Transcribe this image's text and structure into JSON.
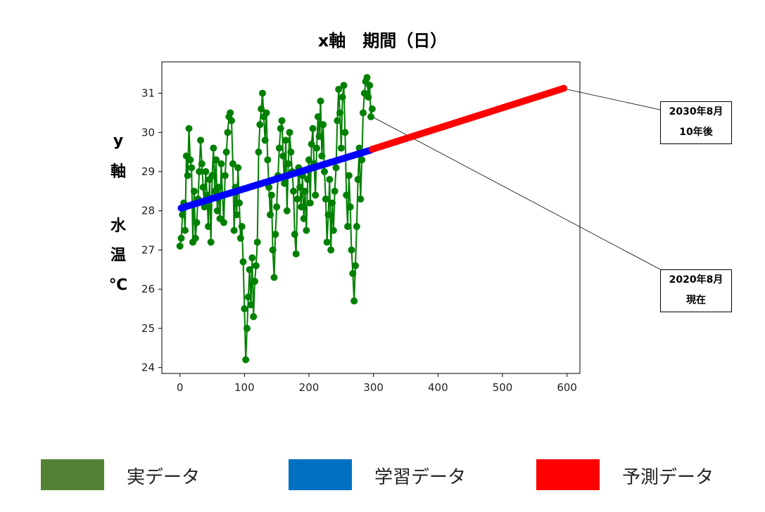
{
  "chart_data": {
    "type": "line",
    "title": "x軸　期間（日）",
    "ylabel": {
      "line1": "y",
      "line2": "軸",
      "line3": "水",
      "line4": "温",
      "line5": "℃"
    },
    "xlim": [
      -28,
      620
    ],
    "ylim": [
      23.85,
      31.8
    ],
    "x_ticks": [
      0,
      100,
      200,
      300,
      400,
      500,
      600
    ],
    "y_ticks": [
      24,
      25,
      26,
      27,
      28,
      29,
      30,
      31
    ],
    "grid": false,
    "series": [
      {
        "name": "実データ",
        "color": "#008000",
        "style": "line-marker",
        "points": [
          [
            0,
            27.1
          ],
          [
            2,
            27.3
          ],
          [
            4,
            27.9
          ],
          [
            6,
            28.2
          ],
          [
            8,
            27.5
          ],
          [
            10,
            29.4
          ],
          [
            12,
            28.9
          ],
          [
            14,
            30.1
          ],
          [
            16,
            29.3
          ],
          [
            18,
            29.1
          ],
          [
            20,
            27.2
          ],
          [
            22,
            28.5
          ],
          [
            24,
            27.3
          ],
          [
            26,
            27.7
          ],
          [
            28,
            28.3
          ],
          [
            30,
            29.0
          ],
          [
            32,
            29.8
          ],
          [
            34,
            29.2
          ],
          [
            36,
            28.6
          ],
          [
            38,
            28.1
          ],
          [
            40,
            29.0
          ],
          [
            42,
            28.4
          ],
          [
            44,
            27.6
          ],
          [
            46,
            28.8
          ],
          [
            48,
            27.2
          ],
          [
            50,
            28.9
          ],
          [
            52,
            29.6
          ],
          [
            54,
            28.5
          ],
          [
            56,
            29.3
          ],
          [
            58,
            28.0
          ],
          [
            60,
            28.6
          ],
          [
            62,
            27.8
          ],
          [
            64,
            29.2
          ],
          [
            66,
            28.4
          ],
          [
            68,
            27.7
          ],
          [
            70,
            28.9
          ],
          [
            72,
            29.5
          ],
          [
            74,
            30.0
          ],
          [
            76,
            30.4
          ],
          [
            78,
            30.5
          ],
          [
            80,
            30.3
          ],
          [
            82,
            29.2
          ],
          [
            84,
            27.5
          ],
          [
            86,
            28.6
          ],
          [
            88,
            27.9
          ],
          [
            90,
            29.1
          ],
          [
            92,
            28.2
          ],
          [
            94,
            27.3
          ],
          [
            96,
            27.6
          ],
          [
            98,
            26.7
          ],
          [
            100,
            25.5
          ],
          [
            102,
            24.2
          ],
          [
            104,
            25.0
          ],
          [
            106,
            25.8
          ],
          [
            108,
            26.5
          ],
          [
            110,
            25.6
          ],
          [
            112,
            26.8
          ],
          [
            114,
            25.3
          ],
          [
            116,
            26.2
          ],
          [
            118,
            26.6
          ],
          [
            120,
            27.2
          ],
          [
            122,
            29.5
          ],
          [
            124,
            30.2
          ],
          [
            126,
            30.6
          ],
          [
            128,
            31.0
          ],
          [
            130,
            30.4
          ],
          [
            132,
            29.8
          ],
          [
            134,
            30.5
          ],
          [
            136,
            29.3
          ],
          [
            138,
            28.6
          ],
          [
            140,
            27.9
          ],
          [
            142,
            28.4
          ],
          [
            144,
            27.0
          ],
          [
            146,
            26.3
          ],
          [
            148,
            27.4
          ],
          [
            150,
            28.1
          ],
          [
            152,
            28.9
          ],
          [
            154,
            29.6
          ],
          [
            156,
            30.1
          ],
          [
            158,
            30.3
          ],
          [
            160,
            29.4
          ],
          [
            162,
            28.7
          ],
          [
            164,
            29.8
          ],
          [
            166,
            28.0
          ],
          [
            168,
            29.2
          ],
          [
            170,
            30.0
          ],
          [
            172,
            29.5
          ],
          [
            174,
            29.0
          ],
          [
            176,
            28.5
          ],
          [
            178,
            27.4
          ],
          [
            180,
            26.9
          ],
          [
            182,
            28.3
          ],
          [
            184,
            29.1
          ],
          [
            186,
            28.6
          ],
          [
            188,
            28.1
          ],
          [
            190,
            28.9
          ],
          [
            192,
            27.8
          ],
          [
            194,
            28.5
          ],
          [
            196,
            27.5
          ],
          [
            198,
            28.8
          ],
          [
            200,
            29.3
          ],
          [
            202,
            28.2
          ],
          [
            204,
            29.7
          ],
          [
            206,
            30.1
          ],
          [
            208,
            29.2
          ],
          [
            210,
            28.4
          ],
          [
            212,
            29.6
          ],
          [
            214,
            30.4
          ],
          [
            216,
            29.9
          ],
          [
            218,
            30.8
          ],
          [
            220,
            29.4
          ],
          [
            222,
            30.2
          ],
          [
            224,
            29.0
          ],
          [
            226,
            28.3
          ],
          [
            228,
            27.2
          ],
          [
            230,
            27.9
          ],
          [
            232,
            28.8
          ],
          [
            234,
            27.0
          ],
          [
            236,
            28.2
          ],
          [
            238,
            27.5
          ],
          [
            240,
            28.5
          ],
          [
            242,
            29.1
          ],
          [
            244,
            30.3
          ],
          [
            246,
            31.1
          ],
          [
            248,
            30.5
          ],
          [
            250,
            29.6
          ],
          [
            252,
            30.9
          ],
          [
            254,
            31.2
          ],
          [
            256,
            30.0
          ],
          [
            258,
            28.4
          ],
          [
            260,
            27.6
          ],
          [
            262,
            28.9
          ],
          [
            264,
            28.1
          ],
          [
            266,
            27.0
          ],
          [
            268,
            26.4
          ],
          [
            270,
            25.7
          ],
          [
            272,
            26.6
          ],
          [
            274,
            27.6
          ],
          [
            276,
            28.8
          ],
          [
            278,
            29.6
          ],
          [
            280,
            28.3
          ],
          [
            282,
            29.3
          ],
          [
            284,
            30.5
          ],
          [
            286,
            31.0
          ],
          [
            288,
            31.3
          ],
          [
            290,
            31.4
          ],
          [
            292,
            30.9
          ],
          [
            294,
            31.2
          ],
          [
            296,
            30.4
          ],
          [
            298,
            30.6
          ]
        ]
      },
      {
        "name": "学習データ",
        "color": "#0000ff",
        "style": "markers",
        "x_start": 2,
        "x_end": 296,
        "step": 3,
        "y_start": 28.07,
        "y_end": 29.55
      },
      {
        "name": "予測データ",
        "color": "#ff0000",
        "style": "markers",
        "x_start": 298,
        "x_end": 594,
        "step": 3,
        "y_start": 29.57,
        "y_end": 31.12
      }
    ],
    "annotations": [
      {
        "line1": "2030年8月",
        "line2": "10年後",
        "target": [
          594,
          31.12
        ]
      },
      {
        "line1": "2020年8月",
        "line2": "現在",
        "target": [
          298,
          30.4
        ]
      }
    ]
  },
  "legend": [
    {
      "label": "実データ",
      "color": "#548235"
    },
    {
      "label": "学習データ",
      "color": "#0070c0"
    },
    {
      "label": "予測データ",
      "color": "#ff0000"
    }
  ]
}
